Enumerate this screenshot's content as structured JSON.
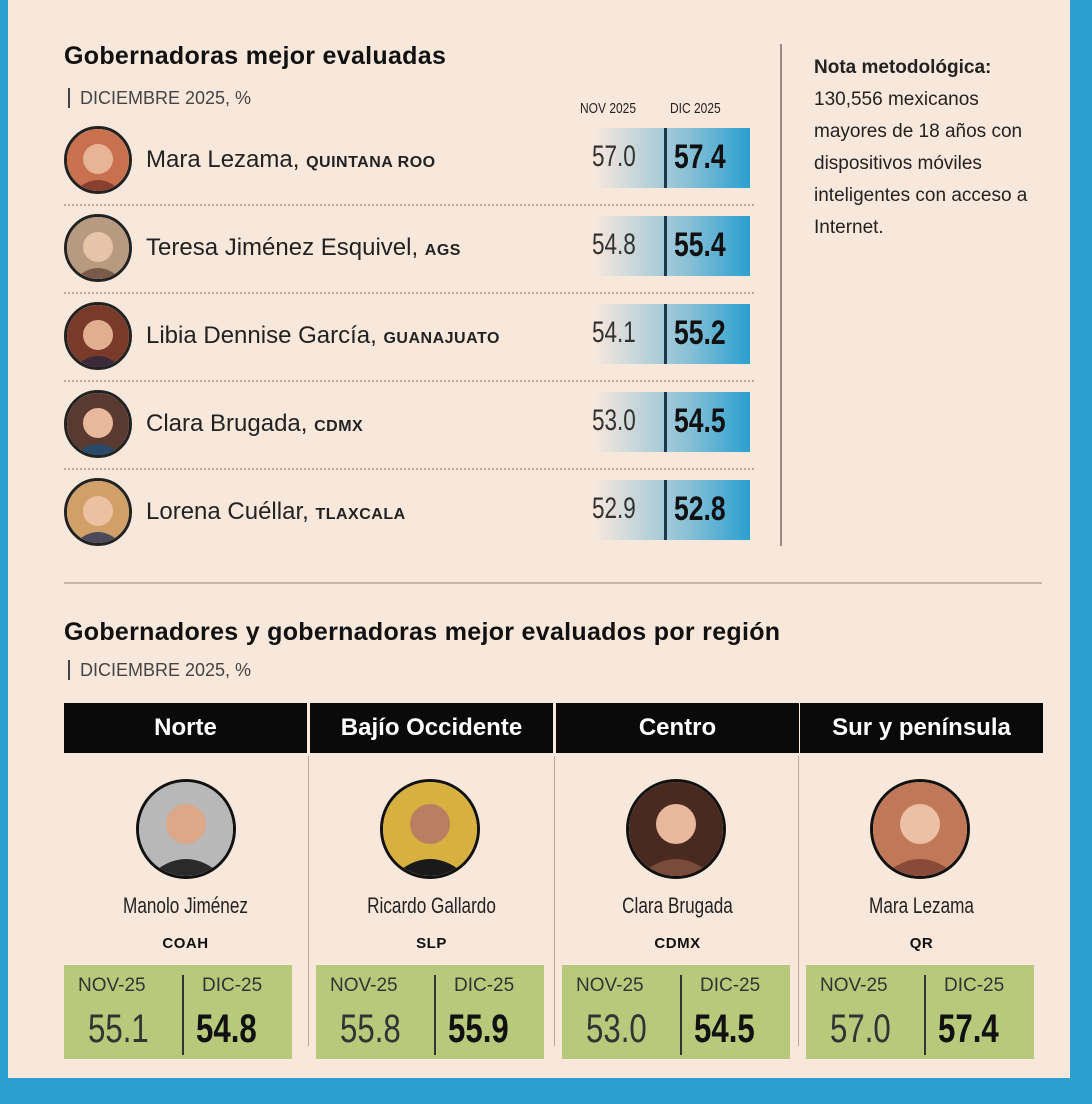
{
  "chart_data": [
    {
      "type": "table",
      "title": "Gobernadoras mejor evaluadas",
      "subtitle": "DICIEMBRE 2025, %",
      "columns": [
        "NOV 2025",
        "DIC 2025"
      ],
      "rows": [
        {
          "name": "Mara Lezama,",
          "state": "QUINTANA ROO",
          "nov": "57.0",
          "dic": "57.4"
        },
        {
          "name": "Teresa Jiménez Esquivel,",
          "state": "AGS",
          "nov": "54.8",
          "dic": "55.4"
        },
        {
          "name": "Libia Dennise García,",
          "state": "GUANAJUATO",
          "nov": "54.1",
          "dic": "55.2"
        },
        {
          "name": "Clara Brugada,",
          "state": "CDMX",
          "nov": "53.0",
          "dic": "54.5"
        },
        {
          "name": "Lorena Cuéllar,",
          "state": "TLAXCALA",
          "nov": "52.9",
          "dic": "52.8"
        }
      ]
    },
    {
      "type": "table",
      "title": "Gobernadores y gobernadoras mejor evaluados por región",
      "subtitle": "DICIEMBRE 2025, %",
      "columns": [
        "NOV-25",
        "DIC-25"
      ],
      "regions": [
        {
          "region": "Norte",
          "name": "Manolo Jiménez",
          "state": "COAH",
          "nov": "55.1",
          "dic": "54.8"
        },
        {
          "region": "Bajío Occidente",
          "name": "Ricardo Gallardo",
          "state": "SLP",
          "nov": "55.8",
          "dic": "55.9"
        },
        {
          "region": "Centro",
          "name": "Clara Brugada",
          "state": "CDMX",
          "nov": "53.0",
          "dic": "54.5"
        },
        {
          "region": "Sur y península",
          "name": "Mara Lezama",
          "state": "QR",
          "nov": "57.0",
          "dic": "57.4"
        }
      ]
    }
  ],
  "note": {
    "title": "Nota metodológica:",
    "body": "130,556 mexicanos mayores de 18 años con dispositivos móviles inteligentes con acceso a Internet."
  },
  "colors": {
    "accent": "#2a9fd0",
    "background": "#f8e8dc",
    "green_box": "#b8c97c"
  }
}
